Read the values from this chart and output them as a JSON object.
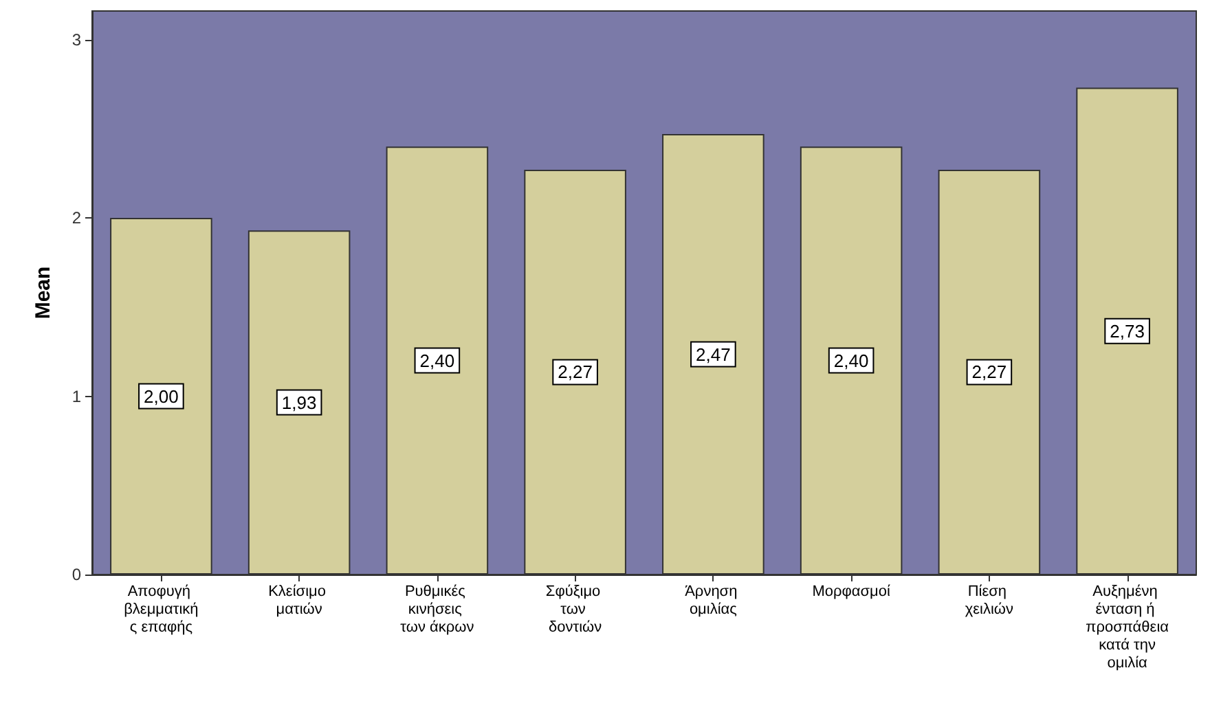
{
  "chart_data": {
    "type": "bar",
    "ylabel": "Mean",
    "categories": [
      "Αποφυγή βλεμματικής επαφής",
      "Κλείσιμο ματιών",
      "Ρυθμικές κινήσεις των άκρων",
      "Σφύξιμο των δοντιών",
      "Άρνηση ομιλίας",
      "Μορφασμοί",
      "Πίεση χειλιών",
      "Αυξημένη ένταση ή προσπάθεια κατά την ομιλία"
    ],
    "values": [
      2.0,
      1.93,
      2.4,
      2.27,
      2.47,
      2.4,
      2.27,
      2.73
    ],
    "value_labels": [
      "2,00",
      "1,93",
      "2,40",
      "2,27",
      "2,47",
      "2,40",
      "2,27",
      "2,73"
    ],
    "color": "#d4cf9c",
    "ylim": [
      0,
      3.16
    ],
    "yticks": [
      0,
      1,
      2,
      3
    ],
    "bands": [
      {
        "axis": "y",
        "from": 0,
        "to": 3.16,
        "color": "#7b7aa8"
      }
    ],
    "grid": false
  }
}
